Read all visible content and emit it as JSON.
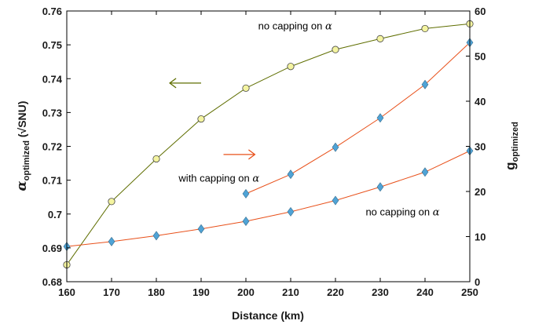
{
  "chart_data": {
    "type": "line",
    "xlabel": "Distance (km)",
    "ylabel_left": {
      "symbol": "α",
      "subscript": "optimized",
      "unit": " (√SNU)"
    },
    "ylabel_right": {
      "main": "g",
      "subscript": "optimized"
    },
    "xlim": [
      160,
      250
    ],
    "ylim_left": [
      0.68,
      0.76
    ],
    "ylim_right": [
      0,
      60
    ],
    "x_ticks": [
      "160",
      "170",
      "180",
      "190",
      "200",
      "210",
      "220",
      "230",
      "240",
      "250"
    ],
    "y_left_ticks": [
      "0.68",
      "0.69",
      "0.7",
      "0.71",
      "0.72",
      "0.73",
      "0.74",
      "0.75",
      "0.76"
    ],
    "y_right_ticks": [
      "0",
      "10",
      "20",
      "30",
      "40",
      "50",
      "60"
    ],
    "grid": false,
    "series": [
      {
        "axis": "left",
        "color": "#5f6e00",
        "marker": "circle",
        "marker_fill": "#f4f4a0",
        "x": [
          160,
          170,
          180,
          190,
          200,
          210,
          220,
          230,
          240,
          250
        ],
        "y": [
          0.685,
          0.7037,
          0.7163,
          0.7281,
          0.7372,
          0.7436,
          0.7486,
          0.7518,
          0.7548,
          0.7562
        ]
      },
      {
        "axis": "right",
        "color": "#e8501a",
        "marker": "diamond",
        "marker_fill": "#4fa3d6",
        "x": [
          200,
          210,
          220,
          230,
          240,
          250
        ],
        "y": [
          19.5,
          23.8,
          29.8,
          36.3,
          43.7,
          53.0
        ]
      },
      {
        "axis": "right",
        "color": "#e8501a",
        "marker": "diamond",
        "marker_fill": "#4fa3d6",
        "x": [
          160,
          170,
          180,
          190,
          200,
          210,
          220,
          230,
          240,
          250
        ],
        "y": [
          7.8,
          8.9,
          10.2,
          11.7,
          13.4,
          15.5,
          18.0,
          21.0,
          24.3,
          29.0
        ]
      }
    ],
    "annotations": [
      {
        "prefix": "no capping on ",
        "symbol": "α",
        "x": 211,
        "y_axis": "left",
        "y": 0.7546
      },
      {
        "prefix": "with capping on ",
        "symbol": "α",
        "x": 194,
        "y_axis": "left",
        "y": 0.7096
      },
      {
        "prefix": "no capping on ",
        "symbol": "α",
        "x": 235,
        "y_axis": "left",
        "y": 0.6996
      }
    ],
    "arrows": [
      {
        "direction": "left",
        "target": "left-axis",
        "color": "#5f6e00",
        "x_from": 190,
        "x_to": 183,
        "y_axis": "left",
        "y": 0.7387
      },
      {
        "direction": "right",
        "target": "right-axis",
        "color": "#e8501a",
        "x_from": 195,
        "x_to": 202,
        "y_axis": "left",
        "y": 0.7176
      }
    ]
  }
}
